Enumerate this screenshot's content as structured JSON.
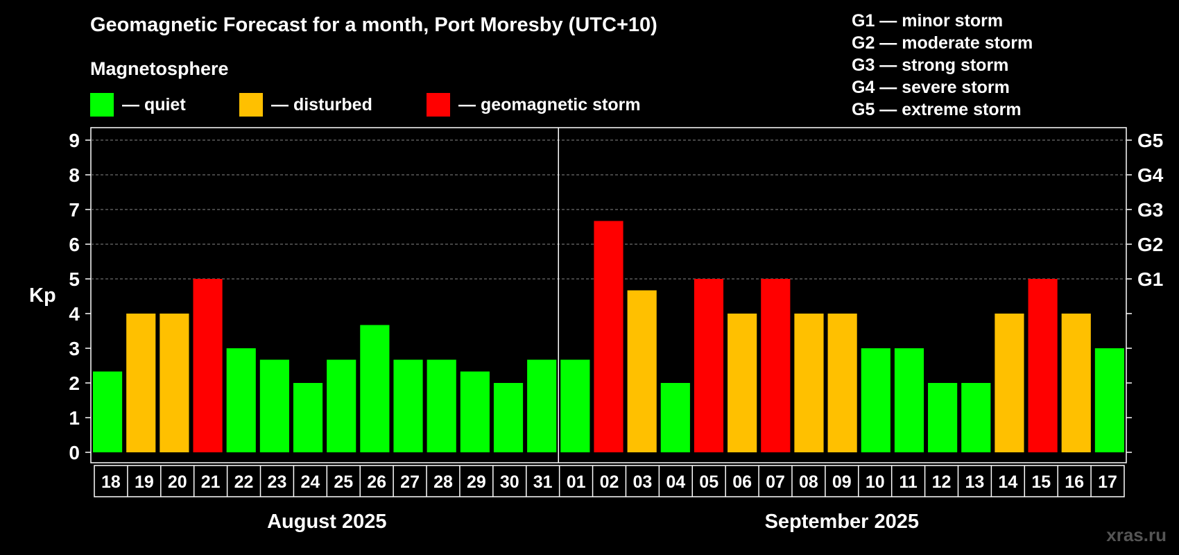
{
  "header": {
    "title": "Geomagnetic Forecast for a month, Port Moresby (UTC+10)",
    "subtitle": "Magnetosphere"
  },
  "legend": [
    {
      "label": "— quiet",
      "color": "#00ff00"
    },
    {
      "label": "— disturbed",
      "color": "#ffc000"
    },
    {
      "label": "— geomagnetic storm",
      "color": "#ff0000"
    }
  ],
  "storm_levels": [
    "G1 — minor storm",
    "G2 — moderate storm",
    "G3 — strong storm",
    "G4 — severe storm",
    "G5 — extreme storm"
  ],
  "footer": {
    "month1": "August 2025",
    "month2": "September 2025",
    "watermark": "xras.ru"
  },
  "chart_data": {
    "type": "bar",
    "ylabel": "Kp",
    "ylim": [
      0,
      9
    ],
    "yticks": [
      0,
      1,
      2,
      3,
      4,
      5,
      6,
      7,
      8,
      9
    ],
    "right_labels": [
      {
        "kp": 5,
        "label": "G1"
      },
      {
        "kp": 6,
        "label": "G2"
      },
      {
        "kp": 7,
        "label": "G3"
      },
      {
        "kp": 8,
        "label": "G4"
      },
      {
        "kp": 9,
        "label": "G5"
      }
    ],
    "grid": "dashed horizontal at Kp 5-9",
    "categories": [
      "18",
      "19",
      "20",
      "21",
      "22",
      "23",
      "24",
      "25",
      "26",
      "27",
      "28",
      "29",
      "30",
      "31",
      "01",
      "02",
      "03",
      "04",
      "05",
      "06",
      "07",
      "08",
      "09",
      "10",
      "11",
      "12",
      "13",
      "14",
      "15",
      "16",
      "17"
    ],
    "values": [
      2.33,
      4,
      4,
      5,
      3,
      2.67,
      2,
      2.67,
      3.67,
      2.67,
      2.67,
      2.33,
      2,
      2.67,
      2.67,
      6.67,
      4.67,
      2,
      5,
      4,
      5,
      4,
      4,
      3,
      3,
      2,
      2,
      4,
      5,
      4,
      3
    ],
    "status": [
      "quiet",
      "disturbed",
      "disturbed",
      "storm",
      "quiet",
      "quiet",
      "quiet",
      "quiet",
      "quiet",
      "quiet",
      "quiet",
      "quiet",
      "quiet",
      "quiet",
      "quiet",
      "storm",
      "disturbed",
      "quiet",
      "storm",
      "disturbed",
      "storm",
      "disturbed",
      "disturbed",
      "quiet",
      "quiet",
      "quiet",
      "quiet",
      "disturbed",
      "storm",
      "disturbed",
      "quiet"
    ],
    "colors": {
      "quiet": "#00ff00",
      "disturbed": "#ffc000",
      "storm": "#ff0000"
    }
  }
}
